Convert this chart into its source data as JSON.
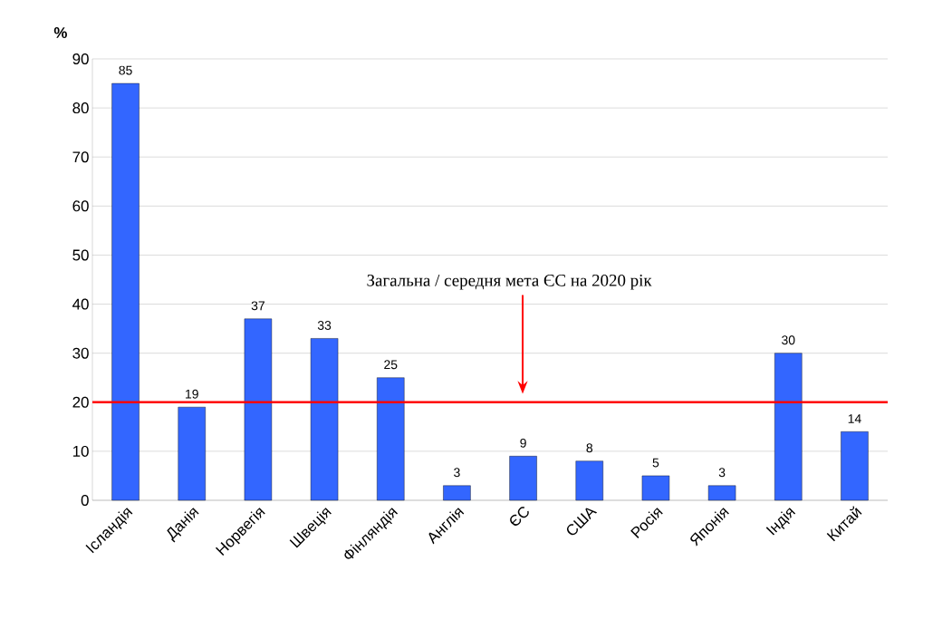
{
  "chart_data": {
    "type": "bar",
    "ylabel": "%",
    "categories": [
      "Ісландія",
      "Данія",
      "Норвегія",
      "Швеція",
      "Фінляндія",
      "Англія",
      "ЄС",
      "США",
      "Росія",
      "Японія",
      "Індія",
      "Китай"
    ],
    "values": [
      85,
      19,
      37,
      33,
      25,
      3,
      9,
      8,
      5,
      3,
      30,
      14
    ],
    "color": "#3366ff",
    "data_labels": true,
    "grid": "y",
    "ylim": [
      0,
      90
    ],
    "yticks": [
      0,
      10,
      20,
      30,
      40,
      50,
      60,
      70,
      80,
      90
    ],
    "ref_lines": [
      {
        "axis": "y",
        "value": 20,
        "color": "#ff0000"
      }
    ],
    "annotations": [
      "Загальна / середня мета ЄС на 2020 рік"
    ]
  }
}
